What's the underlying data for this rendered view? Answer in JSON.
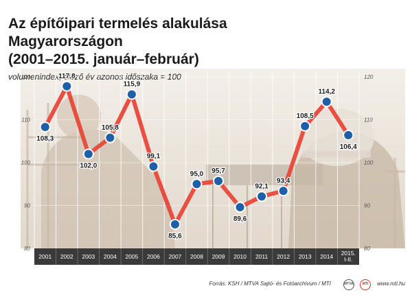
{
  "title": "Az építőipari termelés alakulása Magyarországon\n(2001–2015. január–február)",
  "subtitle": "volumenindex, előző év azonos időszaka = 100",
  "source": "Forrás: KSH / MTVA Sajtó- és Fotóarchívum / MTI",
  "site": "www.mti.hu",
  "logos": {
    "mtva": "MTVA",
    "mti": "MTI"
  },
  "colors": {
    "line": "#e8483a",
    "marker_fill": "#1f5fa8",
    "marker_stroke": "#ffffff",
    "axis_band": "#3a3a3a"
  },
  "chart_data": {
    "type": "line",
    "categories": [
      "2001",
      "2002",
      "2003",
      "2004",
      "2005",
      "2006",
      "2007",
      "2008",
      "2009",
      "2010",
      "2011",
      "2012",
      "2013",
      "2014",
      "2015.\nI-II."
    ],
    "values": [
      108.3,
      117.8,
      102.0,
      105.8,
      115.9,
      99.1,
      85.6,
      95.0,
      95.7,
      89.6,
      92.1,
      93.4,
      108.5,
      114.2,
      106.4
    ],
    "value_labels": [
      "108,3",
      "117,8",
      "102,0",
      "105,8",
      "115,9",
      "99,1",
      "85,6",
      "95,0",
      "95,7",
      "89,6",
      "92,1",
      "93,4",
      "108,5",
      "114,2",
      "106,4"
    ],
    "ylim": [
      80,
      120
    ],
    "yticks": [
      80,
      90,
      100,
      110,
      120
    ],
    "grid": true
  }
}
